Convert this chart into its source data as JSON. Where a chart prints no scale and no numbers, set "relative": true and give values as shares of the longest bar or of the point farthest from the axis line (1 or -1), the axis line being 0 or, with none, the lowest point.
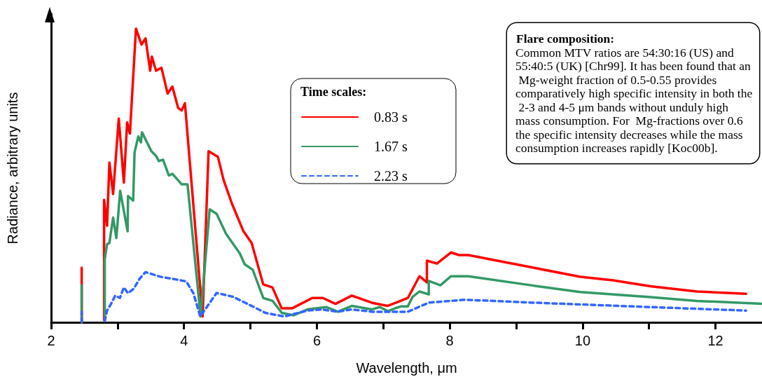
{
  "chart_data": {
    "type": "line",
    "relative": true,
    "xlabel": "Wavelength, μm",
    "ylabel": "Radiance, arbitrary units",
    "legend_title": "Time scales:",
    "legend": "top center",
    "grid": false,
    "marker": "none",
    "xlim": [
      2,
      12.7
    ],
    "xticks": [
      2,
      {
        "value": 3,
        "label": null
      },
      4,
      {
        "value": 5,
        "label": null
      },
      6,
      {
        "value": 7,
        "label": null
      },
      8,
      {
        "value": 9,
        "label": null
      },
      10,
      {
        "value": 11,
        "label": null
      },
      12
    ],
    "annotations": [
      "Flare composition:",
      "Common MTV ratios are 54:30:16 (US) and 55:40:5 (UK) [Chr99]. It has been found that an Mg-weight fraction of 0.5-0.55 provides comparatively high specific intensity in both the 2-3 and 4-5 μm bands without unduly high mass consumption. For  Mg-fractions over 0.6 the specific intensity decreases while the mass consumption increases rapidly [Koc00b]."
    ],
    "series": [
      {
        "name": "0.83 s",
        "color": "#ff0000",
        "line_style": "solid",
        "x": [
          2.46,
          2.46,
          2.6,
          2.797,
          2.797,
          2.842,
          2.877,
          2.933,
          3.018,
          3.095,
          3.144,
          3.186,
          3.277,
          3.361,
          3.421,
          3.491,
          3.516,
          3.579,
          3.66,
          3.754,
          3.825,
          3.912,
          3.965,
          4.014,
          4.28,
          4.37,
          4.51,
          4.597,
          4.72,
          4.895,
          5.018,
          5.193,
          5.33,
          5.47,
          5.63,
          5.93,
          6.09,
          6.28,
          6.526,
          6.825,
          7.06,
          7.193,
          7.37,
          7.544,
          7.656,
          7.656,
          7.807,
          8.018,
          8.14,
          8.28,
          9.26,
          9.965,
          10.456,
          11.02,
          11.72,
          12.46
        ],
        "values": [
          0,
          0.186,
          null,
          0.008,
          0.417,
          0.329,
          0.544,
          0.437,
          0.694,
          0.476,
          0.681,
          0.643,
          1.0,
          0.946,
          0.967,
          0.857,
          0.905,
          0.857,
          0.867,
          0.779,
          0.803,
          0.73,
          0.722,
          0.746,
          0.02,
          0.583,
          0.564,
          0.484,
          0.405,
          0.31,
          0.27,
          0.129,
          0.119,
          0.048,
          0.048,
          0.083,
          0.083,
          0.063,
          0.091,
          0.067,
          0.056,
          0.067,
          0.083,
          0.157,
          0.136,
          0.21,
          0.2,
          0.238,
          0.229,
          0.229,
          0.186,
          0.155,
          0.143,
          0.123,
          0.105,
          0.097
        ]
      },
      {
        "name": "1.67 s",
        "color": "#339966",
        "line_style": "solid",
        "x": [
          2.46,
          2.46,
          2.6,
          2.807,
          2.807,
          2.842,
          2.877,
          2.933,
          2.982,
          3.039,
          3.151,
          3.158,
          3.235,
          3.256,
          3.312,
          3.351,
          3.368,
          3.509,
          3.579,
          3.621,
          3.684,
          3.772,
          3.825,
          3.965,
          4.053,
          4.25,
          4.386,
          4.49,
          4.632,
          4.842,
          4.912,
          5.035,
          5.193,
          5.333,
          5.474,
          5.65,
          5.86,
          6.14,
          6.316,
          6.526,
          6.825,
          6.947,
          7.07,
          7.193,
          7.263,
          7.368,
          7.438,
          7.544,
          7.684,
          7.684,
          7.859,
          8.018,
          8.28,
          9.263,
          9.965,
          11.02,
          11.72,
          12.7
        ],
        "values": [
          0,
          0.126,
          null,
          0.008,
          0.214,
          0.266,
          0.27,
          0.357,
          0.287,
          0.448,
          0.31,
          0.43,
          0.415,
          0.579,
          0.633,
          0.613,
          0.647,
          0.583,
          0.567,
          0.549,
          0.554,
          0.5,
          0.506,
          0.47,
          0.47,
          0.02,
          0.385,
          0.37,
          0.302,
          0.234,
          0.198,
          0.179,
          0.083,
          0.073,
          0.032,
          0.024,
          0.044,
          0.052,
          0.036,
          0.056,
          0.044,
          0.052,
          0.038,
          0.049,
          0.054,
          0.054,
          0.086,
          0.105,
          0.095,
          0.141,
          0.126,
          0.157,
          0.157,
          0.125,
          0.103,
          0.086,
          0.073,
          0.063
        ]
      },
      {
        "name": "2.23 s",
        "color": "#3366ff",
        "line_style": "dashed",
        "x": [
          2.46,
          2.46,
          2.6,
          2.807,
          2.842,
          2.895,
          2.965,
          3.035,
          3.095,
          3.158,
          3.246,
          3.333,
          3.421,
          3.649,
          3.86,
          4.035,
          4.14,
          4.245,
          4.49,
          4.737,
          5.053,
          5.228,
          5.509,
          5.86,
          6.07,
          6.316,
          6.526,
          6.842,
          7.368,
          7.684,
          7.895,
          8.228,
          9.263,
          11.02,
          12.46
        ],
        "values": [
          0,
          0.036,
          null,
          0.004,
          0.04,
          0.06,
          0.091,
          0.083,
          0.119,
          0.099,
          0.115,
          0.149,
          0.171,
          0.155,
          0.147,
          0.139,
          0.1,
          0.02,
          0.1,
          0.087,
          0.052,
          0.032,
          0.02,
          0.04,
          0.044,
          0.036,
          0.044,
          0.036,
          0.036,
          0.067,
          0.071,
          0.077,
          0.067,
          0.052,
          0.04
        ]
      }
    ]
  }
}
